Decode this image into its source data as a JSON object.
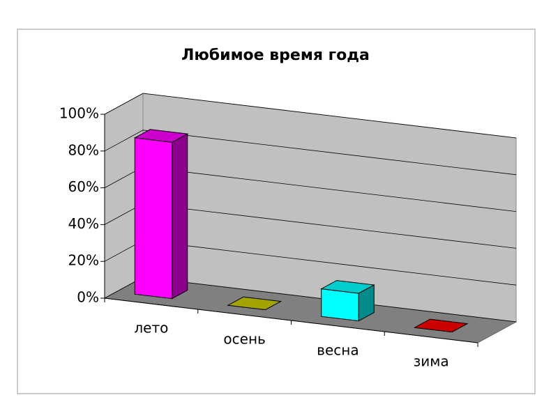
{
  "chart_data": {
    "type": "bar3d",
    "title": "Любимое время года",
    "categories": [
      "лето",
      "осень",
      "весна",
      "зима"
    ],
    "values": [
      85,
      0,
      15,
      0
    ],
    "colors": [
      "#ff00ff",
      "#cccc00",
      "#00ffff",
      "#ff0000"
    ],
    "ylim": [
      0,
      100
    ],
    "yticks": [
      {
        "value": 0,
        "label": "0%"
      },
      {
        "value": 20,
        "label": "20%"
      },
      {
        "value": 40,
        "label": "40%"
      },
      {
        "value": 60,
        "label": "60%"
      },
      {
        "value": 80,
        "label": "80%"
      },
      {
        "value": 100,
        "label": "100%"
      }
    ],
    "grid": true
  }
}
